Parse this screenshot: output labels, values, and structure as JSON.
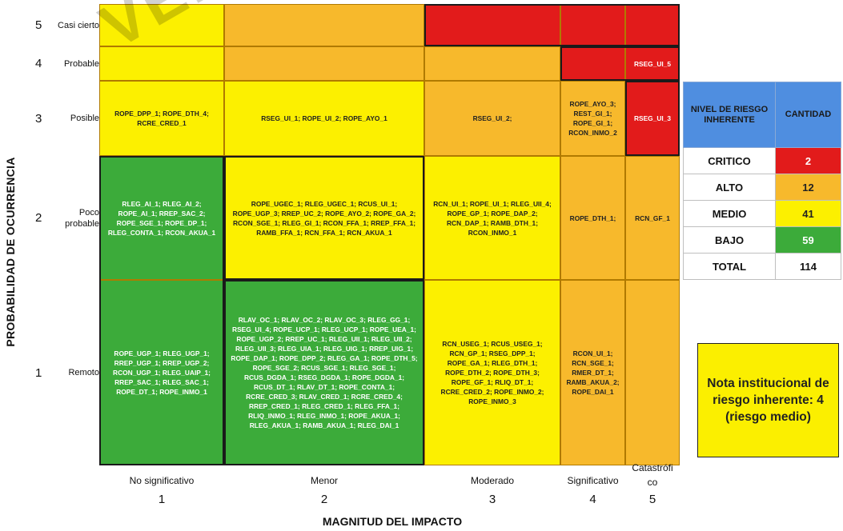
{
  "chart_data": {
    "type": "heatmap",
    "title": "",
    "xlabel": "MAGNITUD DEL IMPACTO",
    "ylabel": "PROBABILIDAD DE OCURRENCIA",
    "x_categories": [
      {
        "num": "1",
        "label": "No significativo"
      },
      {
        "num": "2",
        "label": "Menor"
      },
      {
        "num": "3",
        "label": "Moderado"
      },
      {
        "num": "4",
        "label": "Significativo"
      },
      {
        "num": "5",
        "label": "Catastrófi co"
      }
    ],
    "y_categories": [
      {
        "num": "5",
        "label": "Casi cierto"
      },
      {
        "num": "4",
        "label": "Probable"
      },
      {
        "num": "3",
        "label": "Posible"
      },
      {
        "num": "2",
        "label": "Poco probable"
      },
      {
        "num": "1",
        "label": "Remoto"
      }
    ],
    "level_colors": {
      "CRITICO": "#e21b1b",
      "ALTO": "#f7b92c",
      "MEDIO": "#fcf000",
      "BAJO": "#3cab3a"
    },
    "cells": [
      {
        "prob": 5,
        "impact": 1,
        "level": "MEDIO",
        "text": ""
      },
      {
        "prob": 5,
        "impact": 2,
        "level": "ALTO",
        "text": ""
      },
      {
        "prob": 5,
        "impact": 3,
        "level": "CRITICO",
        "text": ""
      },
      {
        "prob": 5,
        "impact": 4,
        "level": "CRITICO",
        "text": ""
      },
      {
        "prob": 5,
        "impact": 5,
        "level": "CRITICO",
        "text": ""
      },
      {
        "prob": 4,
        "impact": 1,
        "level": "MEDIO",
        "text": ""
      },
      {
        "prob": 4,
        "impact": 2,
        "level": "ALTO",
        "text": ""
      },
      {
        "prob": 4,
        "impact": 3,
        "level": "ALTO",
        "text": ""
      },
      {
        "prob": 4,
        "impact": 4,
        "level": "CRITICO",
        "text": ""
      },
      {
        "prob": 4,
        "impact": 5,
        "level": "CRITICO",
        "text": "RSEG_UI_5"
      },
      {
        "prob": 3,
        "impact": 1,
        "level": "MEDIO",
        "text": "ROPE_DPP_1; ROPE_DTH_4; RCRE_CRED_1"
      },
      {
        "prob": 3,
        "impact": 2,
        "level": "MEDIO",
        "text": "RSEG_UI_1; ROPE_UI_2; ROPE_AYO_1"
      },
      {
        "prob": 3,
        "impact": 3,
        "level": "ALTO",
        "text": "RSEG_UI_2;"
      },
      {
        "prob": 3,
        "impact": 4,
        "level": "ALTO",
        "text": "ROPE_AYO_3; REST_GI_1; ROPE_GI_1; RCON_INMO_2"
      },
      {
        "prob": 3,
        "impact": 5,
        "level": "CRITICO",
        "text": "RSEG_UI_3"
      },
      {
        "prob": 2,
        "impact": 1,
        "level": "BAJO",
        "text": "RLEG_AI_1; RLEG_AI_2; ROPE_AI_1; RREP_SAC_2; ROPE_SGE_1; ROPE_DP_1; RLEG_CONTA_1; RCON_AKUA_1"
      },
      {
        "prob": 2,
        "impact": 2,
        "level": "MEDIO",
        "text": "ROPE_UGEC_1; RLEG_UGEC_1; RCUS_UI_1; ROPE_UGP_3; RREP_UC_2; ROPE_AYO_2; ROPE_GA_2; RCON_SGE_1; RLEG_GI_1; RCON_FFA_1; RREP_FFA_1; RAMB_FFA_1; RCN_FFA_1; RCN_AKUA_1"
      },
      {
        "prob": 2,
        "impact": 3,
        "level": "MEDIO",
        "text": "RCN_UI_1; ROPE_UI_1; RLEG_UII_4; ROPE_GP_1; ROPE_DAP_2; RCN_DAP_1; RAMB_DTH_1; RCON_INMO_1"
      },
      {
        "prob": 2,
        "impact": 4,
        "level": "ALTO",
        "text": "ROPE_DTH_1;"
      },
      {
        "prob": 2,
        "impact": 5,
        "level": "ALTO",
        "text": "RCN_GF_1"
      },
      {
        "prob": 1,
        "impact": 1,
        "level": "BAJO",
        "text": "ROPE_UGP_1; RLEG_UGP_1; RREP_UGP_1; RREP_UGP_2; RCON_UGP_1; RLEG_UAIP_1; RREP_SAC_1; RLEG_SAC_1; ROPE_DT_1; ROPE_INMO_1"
      },
      {
        "prob": 1,
        "impact": 2,
        "level": "BAJO",
        "text": "RLAV_OC_1; RLAV_OC_2; RLAV_OC_3; RLEG_GG_1; RSEG_UI_4; ROPE_UCP_1; RLEG_UCP_1; ROPE_UEA_1; ROPE_UGP_2; RREP_UC_1; RLEG_UII_1; RLEG_UII_2; RLEG_UII_3; RLEG_UIA_1; RLEG_UIG_1; RREP_UIG_1; ROPE_DAP_1; ROPE_DPP_2; RLEG_GA_1; ROPE_DTH_5; ROPE_SGE_2; RCUS_SGE_1; RLEG_SGE_1; RCUS_DGDA_1; RSEG_DGDA_1; ROPE_DGDA_1; RCUS_DT_1; RLAV_DT_1; ROPE_CONTA_1; RCRE_CRED_3; RLAV_CRED_1; RCRE_CRED_4; RREP_CRED_1; RLEG_CRED_1; RLEG_FFA_1; RLIQ_INMO_1; RLEG_INMO_1; ROPE_AKUA_1; RLEG_AKUA_1; RAMB_AKUA_1; RLEG_DAI_1"
      },
      {
        "prob": 1,
        "impact": 3,
        "level": "MEDIO",
        "text": "RCN_USEG_1; RCUS_USEG_1; RCN_GP_1; RSEG_DPP_1; ROPE_GA_1; RLEG_DTH_1; ROPE_DTH_2; ROPE_DTH_3; ROPE_GF_1; RLIQ_DT_1; RCRE_CRED_2; ROPE_INMO_2; ROPE_INMO_3"
      },
      {
        "prob": 1,
        "impact": 4,
        "level": "ALTO",
        "text": "RCON_UI_1; RCN_SGE_1; RMER_DT_1; RAMB_AKUA_2; ROPE_DAI_1"
      },
      {
        "prob": 1,
        "impact": 5,
        "level": "ALTO",
        "text": ""
      }
    ]
  },
  "watermark_text": "VER",
  "legend": {
    "header_level": "NIVEL DE RIESGO INHERENTE",
    "header_count": "CANTIDAD",
    "rows": [
      {
        "name": "CRITICO",
        "count": "2",
        "color": "#e21b1b",
        "text_color": "#ffffff"
      },
      {
        "name": "ALTO",
        "count": "12",
        "color": "#f7b92c",
        "text_color": "#222222"
      },
      {
        "name": "MEDIO",
        "count": "41",
        "color": "#fcf000",
        "text_color": "#222222"
      },
      {
        "name": "BAJO",
        "count": "59",
        "color": "#3cab3a",
        "text_color": "#ffffff"
      },
      {
        "name": "TOTAL",
        "count": "114",
        "color": "#ffffff",
        "text_color": "#111111"
      }
    ]
  },
  "note": "Nota institucional de riesgo inherente: 4 (riesgo medio)"
}
